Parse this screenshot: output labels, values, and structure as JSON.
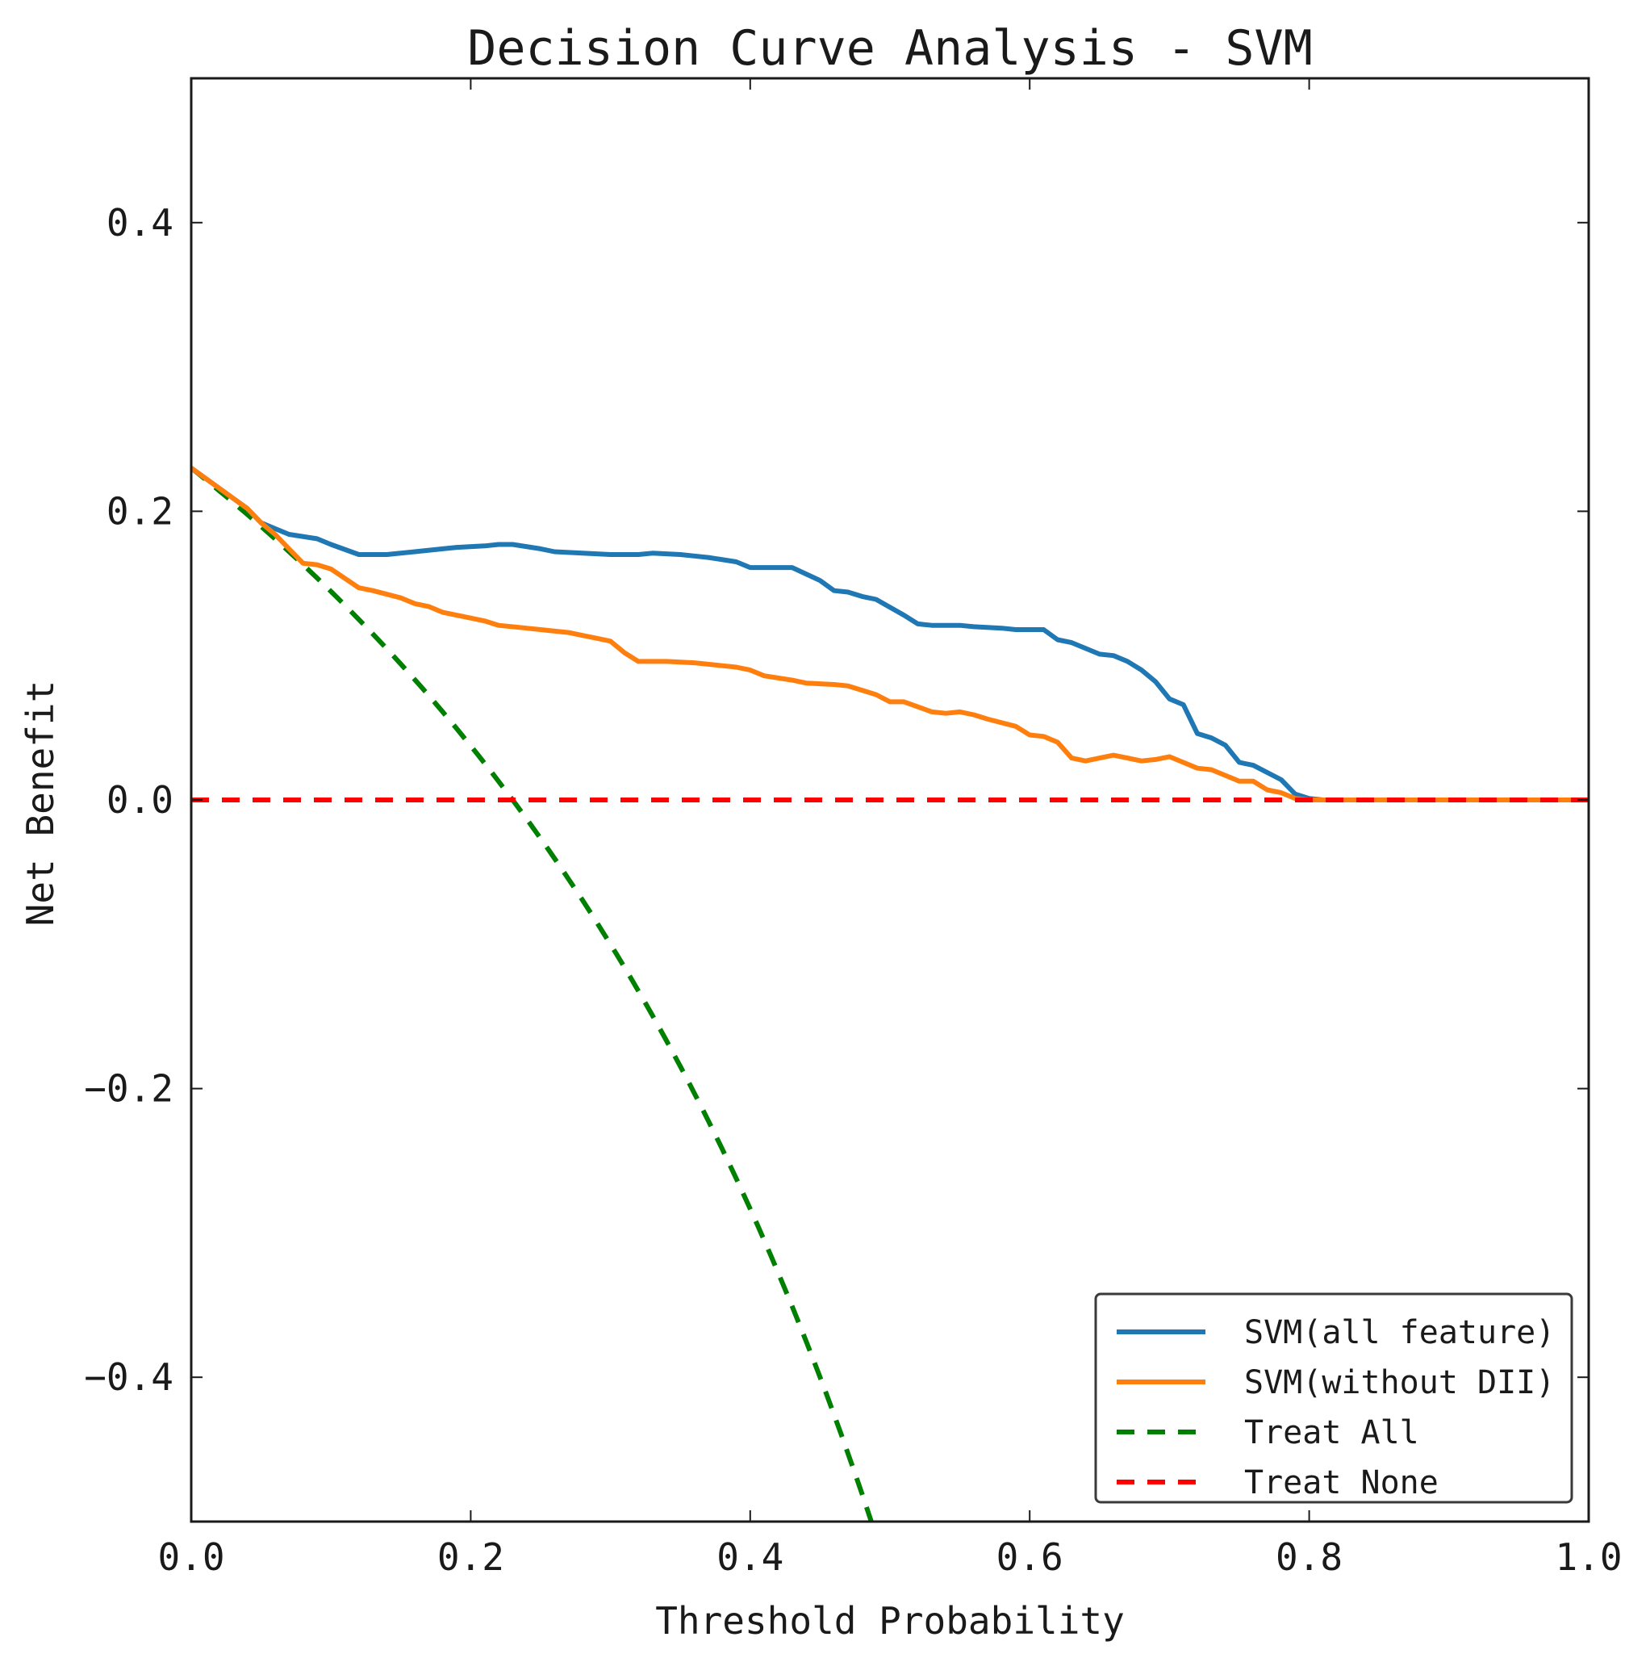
{
  "chart_data": {
    "type": "line",
    "title": "Decision Curve Analysis - SVM",
    "xlabel": "Threshold Probability",
    "ylabel": "Net Benefit",
    "xlim": [
      0.0,
      1.0
    ],
    "ylim": [
      -0.5,
      0.5
    ],
    "x_ticks": [
      0.0,
      0.2,
      0.4,
      0.6,
      0.8,
      1.0
    ],
    "x_tick_labels": [
      "0.0",
      "0.2",
      "0.4",
      "0.6",
      "0.8",
      "1.0"
    ],
    "y_ticks": [
      0.4,
      0.2,
      0.0,
      -0.2,
      -0.4
    ],
    "y_tick_labels": [
      "0.4",
      "0.2",
      "0.0",
      "−0.2",
      "−0.4"
    ],
    "grid": false,
    "legend_position": "bottom-right",
    "series": [
      {
        "name": "SVM(all feature)",
        "color": "#1f77b4",
        "style": "solid",
        "points": [
          [
            0.0,
            0.23
          ],
          [
            0.02,
            0.216
          ],
          [
            0.04,
            0.202
          ],
          [
            0.05,
            0.192
          ],
          [
            0.06,
            0.188
          ],
          [
            0.07,
            0.184
          ],
          [
            0.09,
            0.181
          ],
          [
            0.1,
            0.177
          ],
          [
            0.12,
            0.17
          ],
          [
            0.14,
            0.17
          ],
          [
            0.16,
            0.172
          ],
          [
            0.18,
            0.174
          ],
          [
            0.19,
            0.175
          ],
          [
            0.21,
            0.176
          ],
          [
            0.22,
            0.177
          ],
          [
            0.23,
            0.177
          ],
          [
            0.25,
            0.174
          ],
          [
            0.26,
            0.172
          ],
          [
            0.28,
            0.171
          ],
          [
            0.3,
            0.17
          ],
          [
            0.32,
            0.17
          ],
          [
            0.33,
            0.171
          ],
          [
            0.35,
            0.17
          ],
          [
            0.36,
            0.169
          ],
          [
            0.37,
            0.168
          ],
          [
            0.39,
            0.165
          ],
          [
            0.4,
            0.161
          ],
          [
            0.42,
            0.161
          ],
          [
            0.43,
            0.161
          ],
          [
            0.45,
            0.152
          ],
          [
            0.46,
            0.145
          ],
          [
            0.47,
            0.144
          ],
          [
            0.48,
            0.141
          ],
          [
            0.49,
            0.139
          ],
          [
            0.51,
            0.128
          ],
          [
            0.52,
            0.122
          ],
          [
            0.53,
            0.121
          ],
          [
            0.55,
            0.121
          ],
          [
            0.56,
            0.12
          ],
          [
            0.58,
            0.119
          ],
          [
            0.59,
            0.118
          ],
          [
            0.61,
            0.118
          ],
          [
            0.62,
            0.111
          ],
          [
            0.63,
            0.109
          ],
          [
            0.65,
            0.101
          ],
          [
            0.66,
            0.1
          ],
          [
            0.67,
            0.096
          ],
          [
            0.68,
            0.09
          ],
          [
            0.69,
            0.082
          ],
          [
            0.7,
            0.07
          ],
          [
            0.71,
            0.066
          ],
          [
            0.72,
            0.046
          ],
          [
            0.73,
            0.043
          ],
          [
            0.74,
            0.038
          ],
          [
            0.75,
            0.026
          ],
          [
            0.76,
            0.024
          ],
          [
            0.78,
            0.014
          ],
          [
            0.79,
            0.004
          ],
          [
            0.8,
            0.001
          ],
          [
            0.81,
            0.0
          ],
          [
            1.0,
            0.0
          ]
        ]
      },
      {
        "name": "SVM(without DII)",
        "color": "#ff7f0e",
        "style": "solid",
        "points": [
          [
            0.0,
            0.23
          ],
          [
            0.02,
            0.216
          ],
          [
            0.04,
            0.202
          ],
          [
            0.05,
            0.192
          ],
          [
            0.06,
            0.184
          ],
          [
            0.07,
            0.174
          ],
          [
            0.08,
            0.164
          ],
          [
            0.09,
            0.163
          ],
          [
            0.1,
            0.16
          ],
          [
            0.12,
            0.147
          ],
          [
            0.13,
            0.145
          ],
          [
            0.15,
            0.14
          ],
          [
            0.16,
            0.136
          ],
          [
            0.17,
            0.134
          ],
          [
            0.18,
            0.13
          ],
          [
            0.2,
            0.126
          ],
          [
            0.21,
            0.124
          ],
          [
            0.22,
            0.121
          ],
          [
            0.24,
            0.119
          ],
          [
            0.25,
            0.118
          ],
          [
            0.27,
            0.116
          ],
          [
            0.28,
            0.114
          ],
          [
            0.29,
            0.112
          ],
          [
            0.3,
            0.11
          ],
          [
            0.31,
            0.102
          ],
          [
            0.32,
            0.096
          ],
          [
            0.34,
            0.096
          ],
          [
            0.36,
            0.095
          ],
          [
            0.38,
            0.093
          ],
          [
            0.39,
            0.092
          ],
          [
            0.4,
            0.09
          ],
          [
            0.41,
            0.086
          ],
          [
            0.43,
            0.083
          ],
          [
            0.44,
            0.081
          ],
          [
            0.46,
            0.08
          ],
          [
            0.47,
            0.079
          ],
          [
            0.48,
            0.076
          ],
          [
            0.49,
            0.073
          ],
          [
            0.5,
            0.068
          ],
          [
            0.51,
            0.068
          ],
          [
            0.53,
            0.061
          ],
          [
            0.54,
            0.06
          ],
          [
            0.55,
            0.061
          ],
          [
            0.56,
            0.059
          ],
          [
            0.57,
            0.056
          ],
          [
            0.59,
            0.051
          ],
          [
            0.6,
            0.045
          ],
          [
            0.61,
            0.044
          ],
          [
            0.62,
            0.04
          ],
          [
            0.63,
            0.029
          ],
          [
            0.64,
            0.027
          ],
          [
            0.65,
            0.029
          ],
          [
            0.66,
            0.031
          ],
          [
            0.67,
            0.029
          ],
          [
            0.68,
            0.027
          ],
          [
            0.69,
            0.028
          ],
          [
            0.7,
            0.03
          ],
          [
            0.71,
            0.026
          ],
          [
            0.72,
            0.022
          ],
          [
            0.73,
            0.021
          ],
          [
            0.74,
            0.017
          ],
          [
            0.75,
            0.013
          ],
          [
            0.76,
            0.013
          ],
          [
            0.77,
            0.007
          ],
          [
            0.78,
            0.005
          ],
          [
            0.79,
            0.001
          ],
          [
            0.8,
            0.0
          ],
          [
            1.0,
            0.0
          ]
        ]
      },
      {
        "name": "Treat All",
        "color": "#008000",
        "style": "dashed",
        "prevalence": 0.23,
        "x_start": 0.0,
        "x_end": 0.49,
        "x_step": 0.005
      },
      {
        "name": "Treat None",
        "color": "#ff0000",
        "style": "dashed",
        "points": [
          [
            0.0,
            0.0
          ],
          [
            1.0,
            0.0
          ]
        ]
      }
    ]
  }
}
